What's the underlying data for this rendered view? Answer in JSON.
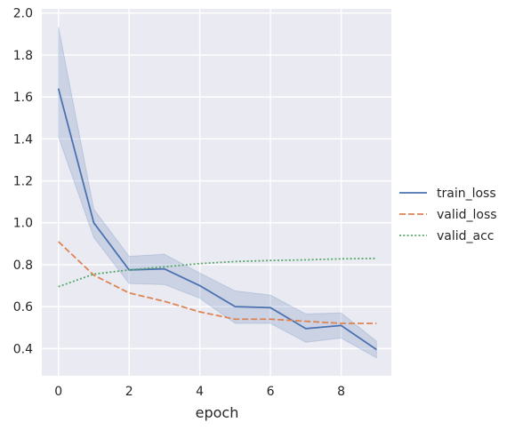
{
  "chart_data": {
    "type": "line",
    "title": "",
    "xlabel": "epoch",
    "ylabel": "",
    "xlim": [
      -0.47,
      9.42
    ],
    "ylim": [
      0.27,
      2.02
    ],
    "xticks": [
      0,
      2,
      4,
      6,
      8
    ],
    "xtick_labels": [
      "0",
      "2",
      "4",
      "6",
      "8"
    ],
    "yticks": [
      0.4,
      0.6,
      0.8,
      1.0,
      1.2,
      1.4,
      1.6,
      1.8,
      2.0
    ],
    "ytick_labels": [
      "0.4",
      "0.6",
      "0.8",
      "1.0",
      "1.2",
      "1.4",
      "1.6",
      "1.8",
      "2.0"
    ],
    "grid": true,
    "legend_position": "right",
    "x": [
      0,
      1,
      2,
      3,
      4,
      5,
      6,
      7,
      8,
      9
    ],
    "series": [
      {
        "name": "train_loss",
        "color": "#4c72b0",
        "style": "solid",
        "values": [
          1.64,
          1.0,
          0.775,
          0.78,
          0.7,
          0.6,
          0.595,
          0.495,
          0.51,
          0.395
        ],
        "band_lower": [
          1.41,
          0.93,
          0.71,
          0.705,
          0.64,
          0.52,
          0.52,
          0.43,
          0.45,
          0.355
        ],
        "band_upper": [
          1.935,
          1.065,
          0.84,
          0.85,
          0.76,
          0.675,
          0.655,
          0.565,
          0.57,
          0.435
        ]
      },
      {
        "name": "valid_loss",
        "color": "#dd8452",
        "style": "dashed",
        "values": [
          0.91,
          0.75,
          0.665,
          0.625,
          0.575,
          0.54,
          0.54,
          0.53,
          0.52,
          0.52
        ]
      },
      {
        "name": "valid_acc",
        "color": "#55a868",
        "style": "dotted",
        "values": [
          0.695,
          0.755,
          0.775,
          0.79,
          0.805,
          0.815,
          0.82,
          0.823,
          0.828,
          0.83
        ]
      }
    ]
  }
}
